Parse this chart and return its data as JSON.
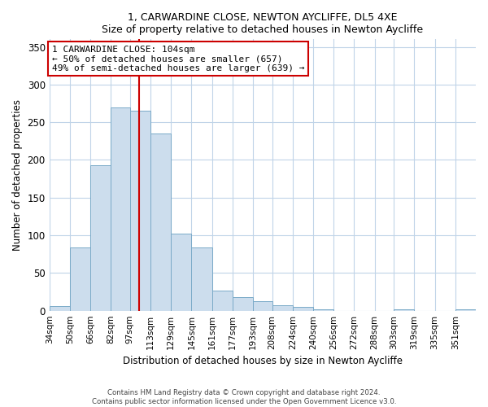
{
  "title": "1, CARWARDINE CLOSE, NEWTON AYCLIFFE, DL5 4XE",
  "subtitle": "Size of property relative to detached houses in Newton Aycliffe",
  "xlabel": "Distribution of detached houses by size in Newton Aycliffe",
  "ylabel": "Number of detached properties",
  "bar_color": "#ccdded",
  "bar_edge_color": "#7aaac8",
  "bins": [
    "34sqm",
    "50sqm",
    "66sqm",
    "82sqm",
    "97sqm",
    "113sqm",
    "129sqm",
    "145sqm",
    "161sqm",
    "177sqm",
    "193sqm",
    "208sqm",
    "224sqm",
    "240sqm",
    "256sqm",
    "272sqm",
    "288sqm",
    "303sqm",
    "319sqm",
    "335sqm",
    "351sqm"
  ],
  "bin_edges": [
    34,
    50,
    66,
    82,
    97,
    113,
    129,
    145,
    161,
    177,
    193,
    208,
    224,
    240,
    256,
    272,
    288,
    303,
    319,
    335,
    351
  ],
  "values": [
    6,
    84,
    193,
    270,
    265,
    235,
    102,
    84,
    27,
    18,
    13,
    7,
    5,
    2,
    0,
    0,
    0,
    2,
    0,
    0,
    2
  ],
  "vline_x": 104,
  "vline_color": "#cc0000",
  "ylim": [
    0,
    360
  ],
  "yticks": [
    0,
    50,
    100,
    150,
    200,
    250,
    300,
    350
  ],
  "annotation_title": "1 CARWARDINE CLOSE: 104sqm",
  "annotation_line1": "← 50% of detached houses are smaller (657)",
  "annotation_line2": "49% of semi-detached houses are larger (639) →",
  "annotation_box_color": "#ffffff",
  "annotation_box_edge": "#cc0000",
  "footer1": "Contains HM Land Registry data © Crown copyright and database right 2024.",
  "footer2": "Contains public sector information licensed under the Open Government Licence v3.0.",
  "background_color": "#ffffff",
  "grid_color": "#c0d4e8"
}
